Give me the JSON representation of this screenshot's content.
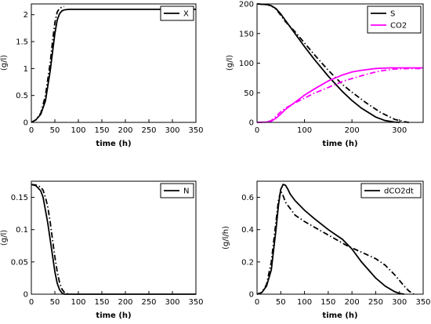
{
  "chart_data": [
    {
      "type": "line",
      "xlabel": "time (h)",
      "ylabel": "(g/l)",
      "xlim": [
        0,
        350
      ],
      "ylim": [
        0,
        2.2
      ],
      "xticks": [
        0,
        50,
        100,
        150,
        200,
        250,
        300,
        350
      ],
      "yticks": [
        0,
        0.5,
        1,
        1.5,
        2
      ],
      "yticklabels": [
        "0",
        "0.5",
        "1",
        "1.5",
        "2"
      ],
      "legend_position": "top-right",
      "series": [
        {
          "name": "X",
          "color": "#000000",
          "style": "solid",
          "x": [
            0,
            10,
            20,
            30,
            40,
            45,
            50,
            55,
            60,
            65,
            70,
            80,
            100,
            150,
            200,
            250,
            300,
            350
          ],
          "y": [
            0,
            0.05,
            0.15,
            0.4,
            0.95,
            1.3,
            1.65,
            1.9,
            2.02,
            2.07,
            2.09,
            2.1,
            2.1,
            2.1,
            2.1,
            2.1,
            2.1,
            2.1
          ]
        },
        {
          "name": "",
          "color": "#000000",
          "style": "dashdot",
          "x": [
            0,
            10,
            20,
            30,
            40,
            45,
            50,
            55,
            60,
            65,
            70
          ],
          "y": [
            0,
            0.05,
            0.17,
            0.5,
            1.1,
            1.5,
            1.85,
            2.05,
            2.12,
            2.14,
            2.15
          ]
        }
      ]
    },
    {
      "type": "line",
      "xlabel": "time (h)",
      "ylabel": "(g/l)",
      "xlim": [
        0,
        350
      ],
      "ylim": [
        0,
        200
      ],
      "xticks": [
        0,
        100,
        200,
        300
      ],
      "yticks": [
        0,
        50,
        100,
        150,
        200
      ],
      "yticklabels": [
        "0",
        "50",
        "100",
        "150",
        "200"
      ],
      "legend_position": "top-right",
      "series": [
        {
          "name": "S",
          "color": "#000000",
          "style": "solid",
          "x": [
            0,
            20,
            30,
            40,
            50,
            60,
            80,
            100,
            120,
            150,
            180,
            200,
            220,
            250,
            270,
            290,
            300
          ],
          "y": [
            200,
            199,
            197,
            192,
            183,
            172,
            150,
            128,
            107,
            78,
            52,
            37,
            24,
            9,
            3,
            0.5,
            0
          ]
        },
        {
          "name": "",
          "color": "#000000",
          "style": "dashdot",
          "x": [
            0,
            20,
            30,
            40,
            50,
            60,
            80,
            100,
            120,
            150,
            180,
            200,
            230,
            260,
            290,
            310,
            320
          ],
          "y": [
            200,
            199,
            197,
            191,
            181,
            170,
            153,
            134,
            115,
            88,
            64,
            51,
            33,
            17,
            5,
            1,
            0
          ]
        },
        {
          "name": "CO2",
          "color": "#ff00ff",
          "style": "solid",
          "x": [
            0,
            20,
            30,
            40,
            50,
            60,
            80,
            100,
            120,
            150,
            180,
            200,
            220,
            250,
            280,
            300,
            320,
            350
          ],
          "y": [
            0,
            0.5,
            2,
            7,
            14,
            22,
            34,
            46,
            56,
            70,
            80,
            85,
            88,
            91,
            92,
            92,
            92,
            92
          ]
        },
        {
          "name": "",
          "color": "#ff00ff",
          "style": "dashdot",
          "x": [
            0,
            20,
            30,
            40,
            50,
            60,
            80,
            100,
            120,
            150,
            180,
            200,
            230,
            260,
            290,
            320,
            350
          ],
          "y": [
            0,
            0.5,
            3,
            10,
            18,
            24,
            33,
            41,
            49,
            59,
            69,
            74,
            81,
            87,
            90,
            91,
            91
          ]
        }
      ]
    },
    {
      "type": "line",
      "xlabel": "time (h)",
      "ylabel": "(g/l)",
      "xlim": [
        0,
        350
      ],
      "ylim": [
        0,
        0.175
      ],
      "xticks": [
        0,
        50,
        100,
        150,
        200,
        250,
        300,
        350
      ],
      "yticks": [
        0,
        0.05,
        0.1,
        0.15
      ],
      "yticklabels": [
        "0",
        "0.05",
        "0.1",
        "0.15"
      ],
      "legend_position": "top-right",
      "series": [
        {
          "name": "N",
          "color": "#000000",
          "style": "solid",
          "x": [
            0,
            10,
            20,
            25,
            30,
            35,
            40,
            45,
            50,
            55,
            60,
            65,
            70,
            80,
            100,
            150,
            200,
            250,
            300,
            350
          ],
          "y": [
            0.17,
            0.168,
            0.16,
            0.15,
            0.13,
            0.11,
            0.085,
            0.06,
            0.035,
            0.017,
            0.007,
            0.002,
            0,
            0,
            0,
            0,
            0,
            0,
            0,
            0
          ]
        },
        {
          "name": "",
          "color": "#000000",
          "style": "dashdot",
          "x": [
            0,
            10,
            20,
            25,
            30,
            35,
            40,
            45,
            50,
            55,
            60,
            65,
            70,
            75,
            80
          ],
          "y": [
            0.17,
            0.169,
            0.166,
            0.161,
            0.15,
            0.135,
            0.112,
            0.085,
            0.058,
            0.035,
            0.018,
            0.008,
            0.003,
            0.001,
            0
          ]
        }
      ]
    },
    {
      "type": "line",
      "xlabel": "time (h)",
      "ylabel": "(g/l/h)",
      "xlim": [
        0,
        350
      ],
      "ylim": [
        0,
        0.7
      ],
      "xticks": [
        0,
        50,
        100,
        150,
        200,
        250,
        300,
        350
      ],
      "yticks": [
        0,
        0.2,
        0.4,
        0.6
      ],
      "yticklabels": [
        "0",
        "0.2",
        "0.4",
        "0.6"
      ],
      "legend_position": "top-right",
      "series": [
        {
          "name": "dCO2dt",
          "color": "#000000",
          "style": "solid",
          "x": [
            0,
            10,
            20,
            30,
            40,
            45,
            50,
            55,
            60,
            65,
            70,
            80,
            100,
            120,
            150,
            180,
            200,
            220,
            250,
            270,
            290,
            300,
            310
          ],
          "y": [
            0,
            0.01,
            0.05,
            0.15,
            0.4,
            0.55,
            0.65,
            0.68,
            0.675,
            0.65,
            0.62,
            0.58,
            0.52,
            0.47,
            0.4,
            0.34,
            0.28,
            0.2,
            0.1,
            0.05,
            0.015,
            0.005,
            0
          ]
        },
        {
          "name": "",
          "color": "#000000",
          "style": "dashdot",
          "x": [
            0,
            10,
            20,
            30,
            40,
            45,
            50,
            55,
            60,
            65,
            70,
            80,
            100,
            130,
            160,
            190,
            220,
            250,
            270,
            290,
            310,
            320,
            330
          ],
          "y": [
            0,
            0.01,
            0.06,
            0.2,
            0.45,
            0.58,
            0.64,
            0.61,
            0.57,
            0.55,
            0.53,
            0.49,
            0.45,
            0.4,
            0.35,
            0.3,
            0.26,
            0.22,
            0.18,
            0.12,
            0.05,
            0.02,
            0
          ]
        }
      ]
    }
  ]
}
